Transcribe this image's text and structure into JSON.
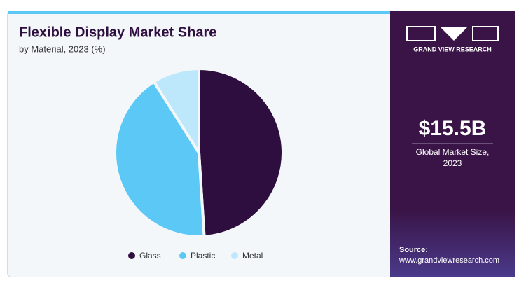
{
  "chart_data": {
    "type": "pie",
    "title": "Flexible Display Market Share",
    "subtitle": "by Material, 2023 (%)",
    "categories": [
      "Glass",
      "Plastic",
      "Metal"
    ],
    "values": [
      49,
      42,
      9
    ],
    "colors": [
      "#2d0e3e",
      "#5bc8f5",
      "#bde8fb"
    ]
  },
  "sidebar": {
    "brand": "GRAND VIEW RESEARCH",
    "market_size": "$15.5B",
    "market_size_label": "Global Market Size, 2023",
    "source_label": "Source:",
    "source_url": "www.grandviewresearch.com"
  }
}
